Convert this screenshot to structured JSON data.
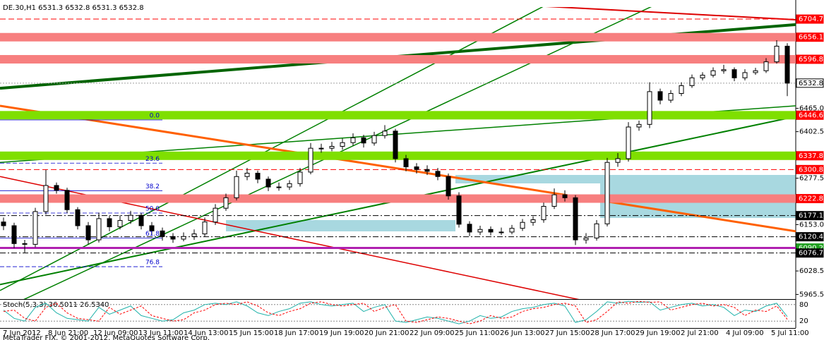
{
  "watermark": "MetaTrader FIX, © 2001-2012, MetaQuotes Software Corp.",
  "chart_data": [
    {
      "type": "candlestick",
      "title": "DE.30,H1  6531.3 6532.8 6531.3 6532.8",
      "x_labels": [
        "7 Jun 2012",
        "8 Jun 21:00",
        "12 Jun 09:00",
        "13 Jun 11:00",
        "14 Jun 13:00",
        "15 Jun 15:00",
        "18 Jun 17:00",
        "19 Jun 19:00",
        "20 Jun 21:00",
        "22 Jun 09:00",
        "25 Jun 11:00",
        "26 Jun 13:00",
        "27 Jun 15:00",
        "28 Jun 17:00",
        "29 Jun 19:00",
        "2 Jul 21:00",
        "4 Jul 09:00",
        "5 Jul 11:00"
      ],
      "open": [
        6160,
        6150,
        6102,
        6100,
        6188,
        6258,
        6245,
        6193,
        6150,
        6112,
        6169,
        6147,
        6164,
        6178,
        6150,
        6136,
        6121,
        6114,
        6121,
        6128,
        6160,
        6197,
        6225,
        6282,
        6291,
        6275,
        6254,
        6254,
        6263,
        6294,
        6358,
        6358,
        6363,
        6373,
        6386,
        6372,
        6392,
        6404,
        6330,
        6308,
        6301,
        6296,
        6282,
        6230,
        6154,
        6133,
        6140,
        6133,
        6133,
        6143,
        6159,
        6166,
        6202,
        6233,
        6225,
        6112,
        6117,
        6155,
        6320,
        6330,
        6415,
        6422,
        6510,
        6487,
        6505,
        6526,
        6547,
        6554,
        6566,
        6569,
        6547,
        6561,
        6566,
        6590,
        6632
      ],
      "high": [
        6172,
        6158,
        6112,
        6198,
        6300,
        6266,
        6252,
        6200,
        6160,
        6185,
        6176,
        6178,
        6190,
        6184,
        6160,
        6145,
        6130,
        6132,
        6140,
        6172,
        6208,
        6236,
        6298,
        6305,
        6298,
        6282,
        6266,
        6272,
        6305,
        6372,
        6370,
        6375,
        6384,
        6398,
        6394,
        6402,
        6420,
        6410,
        6340,
        6318,
        6312,
        6305,
        6290,
        6240,
        6162,
        6150,
        6148,
        6145,
        6152,
        6168,
        6175,
        6212,
        6250,
        6245,
        6232,
        6130,
        6165,
        6332,
        6345,
        6428,
        6432,
        6535,
        6518,
        6514,
        6535,
        6556,
        6562,
        6575,
        6582,
        6575,
        6570,
        6574,
        6600,
        6648,
        6640
      ],
      "low": [
        6138,
        6090,
        6078,
        6092,
        6180,
        6236,
        6184,
        6140,
        6100,
        6105,
        6135,
        6140,
        6155,
        6140,
        6126,
        6110,
        6104,
        6108,
        6112,
        6120,
        6152,
        6190,
        6218,
        6272,
        6264,
        6243,
        6244,
        6246,
        6255,
        6288,
        6346,
        6350,
        6354,
        6365,
        6360,
        6365,
        6384,
        6320,
        6296,
        6290,
        6286,
        6272,
        6220,
        6145,
        6122,
        6125,
        6124,
        6125,
        6127,
        6136,
        6150,
        6158,
        6195,
        6215,
        6098,
        6102,
        6110,
        6148,
        6308,
        6322,
        6405,
        6412,
        6476,
        6480,
        6498,
        6520,
        6540,
        6548,
        6558,
        6538,
        6540,
        6555,
        6560,
        6585,
        6498
      ],
      "close": [
        6150,
        6102,
        6100,
        6188,
        6258,
        6245,
        6193,
        6150,
        6112,
        6169,
        6147,
        6164,
        6178,
        6150,
        6136,
        6121,
        6114,
        6121,
        6128,
        6160,
        6197,
        6225,
        6282,
        6291,
        6275,
        6254,
        6254,
        6263,
        6294,
        6358,
        6358,
        6363,
        6373,
        6386,
        6372,
        6392,
        6404,
        6330,
        6308,
        6301,
        6296,
        6282,
        6230,
        6154,
        6133,
        6140,
        6133,
        6133,
        6143,
        6159,
        6166,
        6202,
        6233,
        6225,
        6112,
        6117,
        6155,
        6320,
        6330,
        6415,
        6422,
        6510,
        6487,
        6505,
        6526,
        6547,
        6554,
        6566,
        6569,
        6547,
        6561,
        6566,
        6590,
        6632,
        6532.8
      ],
      "ylim": [
        5953,
        6737
      ],
      "yticks": [
        {
          "value": 6465,
          "label": "6465.0"
        },
        6402.5,
        6277.5,
        {
          "value": 6153,
          "label": "6153.0"
        },
        6028.5,
        5965.5
      ],
      "levels": [
        {
          "value": 6704.7,
          "color": "#ff0000",
          "style": "dash",
          "label_color": "#ff0000"
        },
        {
          "value": 6656.1,
          "color": "#f77f7f",
          "style": "band",
          "label_color": "#ff0000"
        },
        {
          "value": 6596.8,
          "color": "#f77f7f",
          "style": "band",
          "label_color": "#ff0000"
        },
        {
          "value": 6532.8,
          "color": "#a0a0a0",
          "style": "dot",
          "label_color": "#ffffff"
        },
        {
          "value": 6446.6,
          "color": "#7fdf00",
          "style": "band",
          "label_color": "#ff0000"
        },
        {
          "value": 6337.8,
          "color": "#7fdf00",
          "style": "band",
          "label_color": "#ff0000"
        },
        {
          "value": 6300.8,
          "color": "#ff0000",
          "style": "dash",
          "label_color": "#ff0000"
        },
        {
          "value": 6222.8,
          "color": "#f77f7f",
          "style": "band",
          "label_color": "#ff0000"
        },
        {
          "value": 6177.1,
          "color": "#000000",
          "style": "dashdot",
          "label_color": "#000000"
        },
        {
          "value": 6120.4,
          "color": "#000000",
          "style": "dashdot",
          "label_color": "#000000"
        },
        {
          "value": 6090.2,
          "color": "#b020b0",
          "style": "solid",
          "label_color": "#20a020"
        },
        {
          "value": 6076.7,
          "color": "#000000",
          "style": "dashdot",
          "label_color": "#000000"
        }
      ],
      "trendlines": [
        {
          "color": "#006400",
          "width": 4,
          "ends": [
            6519,
            6690
          ]
        },
        {
          "color": "#008000",
          "width": 1.5,
          "ends": [
            5922,
            6919
          ]
        },
        {
          "color": "#008000",
          "width": 1.5,
          "ends": [
            5976,
            7093
          ]
        },
        {
          "color": "#008000",
          "width": 1.5,
          "ends": [
            6320,
            6472
          ]
        },
        {
          "color": "#008000",
          "width": 2,
          "ends": [
            5992,
            6443
          ]
        },
        {
          "color": "#ff6000",
          "width": 3,
          "ends": [
            6472,
            6135
          ]
        },
        {
          "color": "#dd0000",
          "width": 2,
          "ends": [
            6817,
            6703
          ]
        },
        {
          "color": "#dd0000",
          "width": 1.5,
          "ends": [
            6282,
            5828
          ]
        }
      ],
      "fibonacci": [
        {
          "label": "0.0",
          "value": 6434
        },
        {
          "label": "23.6",
          "value": 6318
        },
        {
          "label": "38.2",
          "value": 6244
        },
        {
          "label": "50.0",
          "value": 6184
        },
        {
          "label": "61.8",
          "value": 6117
        },
        {
          "label": "76.8",
          "value": 6040
        }
      ]
    },
    {
      "type": "line",
      "title": "Stoch(5,3,3) 36.5011 26.5340",
      "ylim": [
        0,
        100
      ],
      "yticks": [
        80,
        20
      ],
      "series": [
        {
          "color": "#20b2aa",
          "values": [
            60,
            30,
            20,
            70,
            85,
            50,
            30,
            25,
            20,
            70,
            45,
            60,
            75,
            40,
            30,
            20,
            25,
            50,
            60,
            80,
            85,
            80,
            90,
            75,
            50,
            40,
            55,
            65,
            85,
            90,
            80,
            75,
            80,
            85,
            55,
            70,
            80,
            20,
            15,
            25,
            35,
            30,
            20,
            10,
            20,
            40,
            30,
            35,
            55,
            65,
            70,
            80,
            85,
            75,
            15,
            25,
            55,
            90,
            85,
            92,
            88,
            90,
            60,
            70,
            80,
            85,
            75,
            80,
            70,
            40,
            60,
            55,
            75,
            85,
            36.5
          ]
        },
        {
          "color": "#ff0000",
          "values": [
            55,
            60,
            30,
            20,
            70,
            85,
            50,
            30,
            25,
            20,
            70,
            45,
            60,
            75,
            40,
            30,
            20,
            25,
            50,
            60,
            80,
            85,
            80,
            90,
            75,
            50,
            40,
            55,
            65,
            85,
            90,
            80,
            75,
            80,
            85,
            55,
            70,
            80,
            20,
            15,
            25,
            35,
            30,
            20,
            10,
            20,
            40,
            30,
            35,
            55,
            65,
            70,
            80,
            85,
            75,
            15,
            25,
            55,
            90,
            85,
            92,
            88,
            90,
            60,
            70,
            80,
            85,
            75,
            80,
            70,
            40,
            60,
            55,
            75,
            26.5
          ]
        }
      ]
    }
  ]
}
